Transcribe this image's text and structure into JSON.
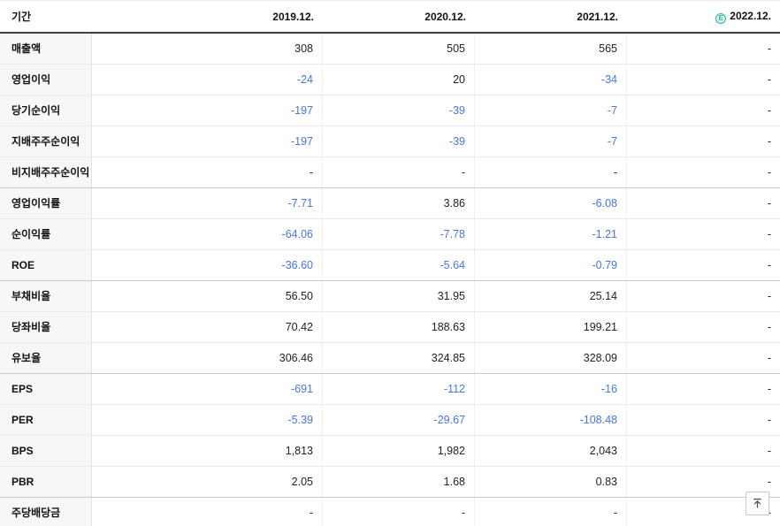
{
  "table": {
    "period_column_label": "기간",
    "periods": [
      {
        "label": "2019.12.",
        "estimate": false
      },
      {
        "label": "2020.12.",
        "estimate": false
      },
      {
        "label": "2021.12.",
        "estimate": false
      },
      {
        "label": "2022.12.",
        "estimate": true
      }
    ],
    "estimate_icon": {
      "glyph": "E"
    },
    "rows": [
      {
        "label": "매출액",
        "values": [
          "308",
          "505",
          "565",
          "-"
        ],
        "section_end": false
      },
      {
        "label": "영업이익",
        "values": [
          "-24",
          "20",
          "-34",
          "-"
        ],
        "section_end": false
      },
      {
        "label": "당기순이익",
        "values": [
          "-197",
          "-39",
          "-7",
          "-"
        ],
        "section_end": false
      },
      {
        "label": "지배주주순이익",
        "values": [
          "-197",
          "-39",
          "-7",
          "-"
        ],
        "section_end": false
      },
      {
        "label": "비지배주주순이익",
        "values": [
          "-",
          "-",
          "-",
          "-"
        ],
        "section_end": true
      },
      {
        "label": "영업이익률",
        "values": [
          "-7.71",
          "3.86",
          "-6.08",
          "-"
        ],
        "section_end": false
      },
      {
        "label": "순이익률",
        "values": [
          "-64.06",
          "-7.78",
          "-1.21",
          "-"
        ],
        "section_end": false
      },
      {
        "label": "ROE",
        "values": [
          "-36.60",
          "-5.64",
          "-0.79",
          "-"
        ],
        "section_end": true
      },
      {
        "label": "부채비율",
        "values": [
          "56.50",
          "31.95",
          "25.14",
          "-"
        ],
        "section_end": false
      },
      {
        "label": "당좌비율",
        "values": [
          "70.42",
          "188.63",
          "199.21",
          "-"
        ],
        "section_end": false
      },
      {
        "label": "유보율",
        "values": [
          "306.46",
          "324.85",
          "328.09",
          "-"
        ],
        "section_end": true
      },
      {
        "label": "EPS",
        "values": [
          "-691",
          "-112",
          "-16",
          "-"
        ],
        "section_end": false
      },
      {
        "label": "PER",
        "values": [
          "-5.39",
          "-29.67",
          "-108.48",
          "-"
        ],
        "section_end": false
      },
      {
        "label": "BPS",
        "values": [
          "1,813",
          "1,982",
          "2,043",
          "-"
        ],
        "section_end": false
      },
      {
        "label": "PBR",
        "values": [
          "2.05",
          "1.68",
          "0.83",
          "-"
        ],
        "section_end": true
      },
      {
        "label": "주당배당금",
        "values": [
          "-",
          "-",
          "-",
          "-"
        ],
        "section_end": false
      }
    ]
  },
  "colors": {
    "negative_value": "#4577e6",
    "estimate_teal": "#2bb59a"
  },
  "scroll_to_top": {
    "icon": "arrow-up-to-top"
  }
}
